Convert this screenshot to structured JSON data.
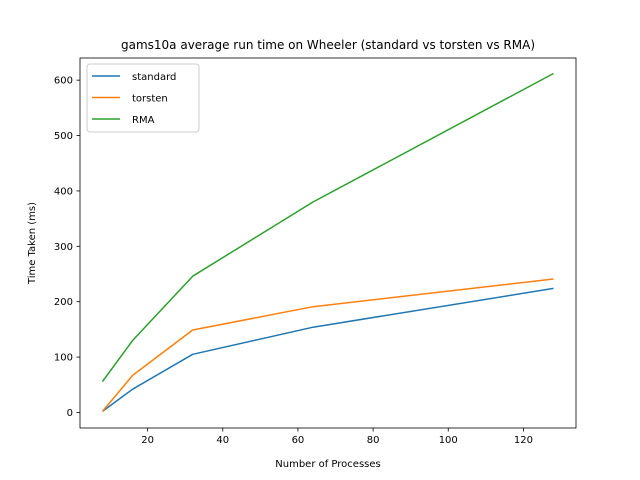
{
  "chart_data": {
    "type": "line",
    "title": "gams10a average run time on Wheeler (standard vs torsten vs RMA)",
    "xlabel": "Number of Processes",
    "ylabel": "Time Taken (ms)",
    "x": [
      8,
      16,
      32,
      64,
      128
    ],
    "xlim": [
      2,
      134
    ],
    "ylim": [
      -28,
      640
    ],
    "xticks": [
      20,
      40,
      60,
      80,
      100,
      120
    ],
    "yticks": [
      0,
      100,
      200,
      300,
      400,
      500,
      600
    ],
    "legend": "top-left",
    "grid": false,
    "series": [
      {
        "name": "standard",
        "color": "#1f77b4",
        "values": [
          2,
          42,
          105,
          154,
          224
        ]
      },
      {
        "name": "torsten",
        "color": "#ff7f0e",
        "values": [
          2,
          67,
          149,
          191,
          241
        ]
      },
      {
        "name": "RMA",
        "color": "#2ca02c",
        "values": [
          56,
          130,
          246,
          380,
          612
        ]
      }
    ]
  }
}
